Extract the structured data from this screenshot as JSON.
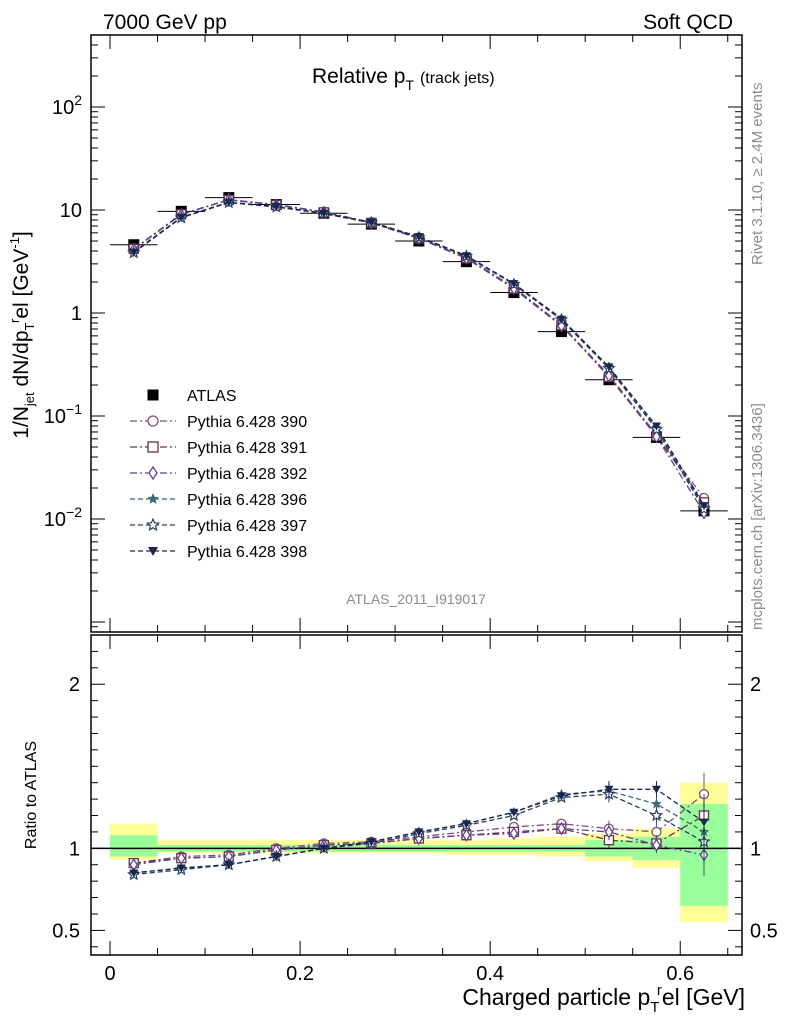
{
  "header": {
    "left": "7000 GeV pp",
    "right": "Soft QCD"
  },
  "side_labels": {
    "rivet": "Rivet 3.1.10, ≥ 2.4M events",
    "mcplots": "mcplots.cern.ch [arXiv:1306.3436]"
  },
  "analysis_id": "ATLAS_2011_I919017",
  "colors": {
    "c390": "#7f4f7f",
    "c391": "#6a2f4a",
    "c392": "#5b3f95",
    "c396": "#3e6b78",
    "c397": "#25405f",
    "c398": "#1a2650",
    "band_stat": "#99ff99",
    "band_tot": "#ffff99"
  },
  "chart_data": [
    {
      "type": "scatter",
      "title": "Relative p_T (track jets)",
      "title_main": "Relative p",
      "title_sub": "T",
      "title_extra": "(track jets)",
      "xlabel": "Charged particle p_T^rel [GeV]",
      "ylabel": "1/N_jet dN/dp_T^rel [GeV^-1]",
      "xlim": [
        -0.02,
        0.665
      ],
      "ylim": [
        0.0008,
        500
      ],
      "yscale": "log",
      "x": [
        0.025,
        0.075,
        0.125,
        0.175,
        0.225,
        0.275,
        0.325,
        0.375,
        0.425,
        0.475,
        0.525,
        0.575,
        0.625
      ],
      "y_ticks": [
        {
          "v": 0.01,
          "b": "10",
          "e": "−2"
        },
        {
          "v": 0.1,
          "b": "10",
          "e": "−1"
        },
        {
          "v": 1,
          "b": "1",
          "e": ""
        },
        {
          "v": 10,
          "b": "10",
          "e": ""
        },
        {
          "v": 100,
          "b": "10",
          "e": "2"
        }
      ],
      "x_ticks": [
        "0",
        "0.2",
        "0.4",
        "0.6"
      ],
      "x_tick_values": [
        0,
        0.2,
        0.4,
        0.6
      ],
      "series": [
        {
          "name": "ATLAS",
          "key": "atlas",
          "marker": "square-filled",
          "values": [
            4.6,
            9.7,
            13.2,
            11.3,
            9.3,
            7.3,
            5.0,
            3.15,
            1.58,
            0.66,
            0.225,
            0.062,
            0.012
          ]
        },
        {
          "name": "Pythia 6.428 390",
          "key": "c390",
          "marker": "circle-open",
          "values": [
            4.2,
            9.1,
            12.6,
            11.3,
            9.6,
            7.6,
            5.4,
            3.45,
            1.78,
            0.77,
            0.25,
            0.066,
            0.016
          ]
        },
        {
          "name": "Pythia 6.428 391",
          "key": "c391",
          "marker": "square-open",
          "values": [
            4.2,
            9.1,
            12.5,
            11.2,
            9.5,
            7.5,
            5.3,
            3.4,
            1.73,
            0.76,
            0.24,
            0.064,
            0.0145
          ]
        },
        {
          "name": "Pythia 6.428 392",
          "key": "c392",
          "marker": "diamond-open",
          "values": [
            4.15,
            9.0,
            12.6,
            11.2,
            9.5,
            7.5,
            5.3,
            3.4,
            1.72,
            0.75,
            0.245,
            0.063,
            0.0115
          ]
        },
        {
          "name": "Pythia 6.428 396",
          "key": "c396",
          "marker": "star-filled",
          "values": [
            3.9,
            8.5,
            11.8,
            10.8,
            9.3,
            7.6,
            5.5,
            3.6,
            1.93,
            0.89,
            0.3,
            0.077,
            0.013
          ]
        },
        {
          "name": "Pythia 6.428 397",
          "key": "c397",
          "marker": "star-open",
          "values": [
            3.85,
            8.4,
            11.8,
            10.7,
            9.2,
            7.5,
            5.4,
            3.55,
            1.9,
            0.86,
            0.29,
            0.074,
            0.0125
          ]
        },
        {
          "name": "Pythia 6.428 398",
          "key": "c398",
          "marker": "triangle-down",
          "values": [
            3.9,
            8.5,
            11.9,
            10.8,
            9.3,
            7.6,
            5.5,
            3.6,
            1.93,
            0.87,
            0.3,
            0.08,
            0.0135
          ]
        }
      ]
    },
    {
      "type": "scatter",
      "title": "Ratio to ATLAS",
      "ylabel": "Ratio to ATLAS",
      "xlim": [
        -0.02,
        0.665
      ],
      "ylim": [
        0.35,
        2.3
      ],
      "y_ticks": [
        "0.5",
        "1",
        "2"
      ],
      "y_tick_values": [
        0.5,
        1,
        2
      ],
      "bands": {
        "edges": [
          0,
          0.05,
          0.1,
          0.15,
          0.2,
          0.25,
          0.3,
          0.35,
          0.4,
          0.45,
          0.5,
          0.55,
          0.6,
          0.65
        ],
        "stat_low": [
          0.95,
          0.98,
          0.98,
          0.98,
          0.98,
          0.98,
          0.98,
          0.98,
          0.98,
          0.98,
          0.95,
          0.93,
          0.65
        ],
        "stat_high": [
          1.08,
          1.02,
          1.02,
          1.02,
          1.02,
          1.02,
          1.02,
          1.02,
          1.02,
          1.02,
          1.05,
          1.07,
          1.27
        ],
        "tot_low": [
          0.93,
          0.97,
          0.97,
          0.97,
          0.97,
          0.97,
          0.97,
          0.96,
          0.96,
          0.95,
          0.92,
          0.88,
          0.55
        ],
        "tot_high": [
          1.15,
          1.05,
          1.05,
          1.05,
          1.05,
          1.05,
          1.05,
          1.05,
          1.06,
          1.07,
          1.09,
          1.12,
          1.4
        ]
      },
      "series": [
        {
          "name": "Pythia 6.428 390",
          "key": "c390",
          "marker": "circle-open",
          "values": [
            0.91,
            0.95,
            0.96,
            1.0,
            1.03,
            1.04,
            1.07,
            1.1,
            1.13,
            1.15,
            1.12,
            1.1,
            1.33
          ]
        },
        {
          "name": "Pythia 6.428 391",
          "key": "c391",
          "marker": "square-open",
          "values": [
            0.91,
            0.94,
            0.95,
            0.99,
            1.02,
            1.03,
            1.06,
            1.08,
            1.1,
            1.12,
            1.05,
            1.03,
            1.2
          ]
        },
        {
          "name": "Pythia 6.428 392",
          "key": "c392",
          "marker": "diamond-open",
          "values": [
            0.9,
            0.94,
            0.95,
            0.99,
            1.02,
            1.03,
            1.06,
            1.08,
            1.09,
            1.12,
            1.1,
            1.02,
            0.96
          ]
        },
        {
          "name": "Pythia 6.428 396",
          "key": "c396",
          "marker": "star-filled",
          "values": [
            0.85,
            0.88,
            0.9,
            0.95,
            1.0,
            1.04,
            1.1,
            1.15,
            1.22,
            1.33,
            1.35,
            1.27,
            1.1
          ]
        },
        {
          "name": "Pythia 6.428 397",
          "key": "c397",
          "marker": "star-open",
          "values": [
            0.84,
            0.87,
            0.9,
            0.95,
            1.0,
            1.03,
            1.09,
            1.14,
            1.2,
            1.31,
            1.33,
            1.2,
            1.04
          ]
        },
        {
          "name": "Pythia 6.428 398",
          "key": "c398",
          "marker": "triangle-down",
          "values": [
            0.85,
            0.88,
            0.9,
            0.95,
            1.0,
            1.04,
            1.1,
            1.15,
            1.22,
            1.32,
            1.36,
            1.36,
            1.16
          ]
        }
      ]
    }
  ]
}
